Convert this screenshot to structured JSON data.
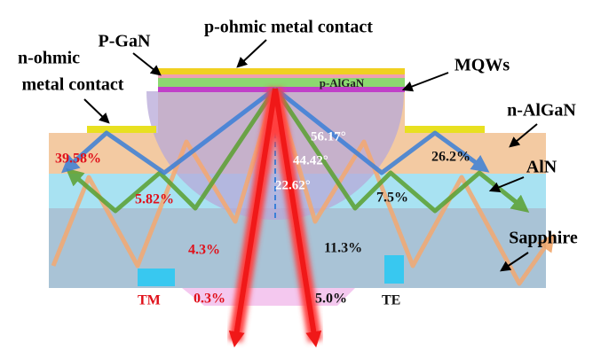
{
  "contacts": {
    "p_ohmic": "p-ohmic metal contact",
    "n_ohmic_line1": "n-ohmic",
    "n_ohmic_line2": "metal contact"
  },
  "layers": {
    "p_gan": "P-GaN",
    "mqws": "MQWs",
    "p_algan": "p-AlGaN",
    "n_algan": "n-AlGaN",
    "aln": "AlN",
    "sapphire": "Sapphire"
  },
  "angles": [
    "56.17°",
    "44.42°",
    "22.62°"
  ],
  "tm": {
    "label": "TM",
    "percentages": [
      "39.58%",
      "5.82%",
      "4.3%",
      "0.3%"
    ]
  },
  "te": {
    "label": "TE",
    "percentages": [
      "26.2%",
      "7.5%",
      "11.3%",
      "5.0%"
    ]
  }
}
